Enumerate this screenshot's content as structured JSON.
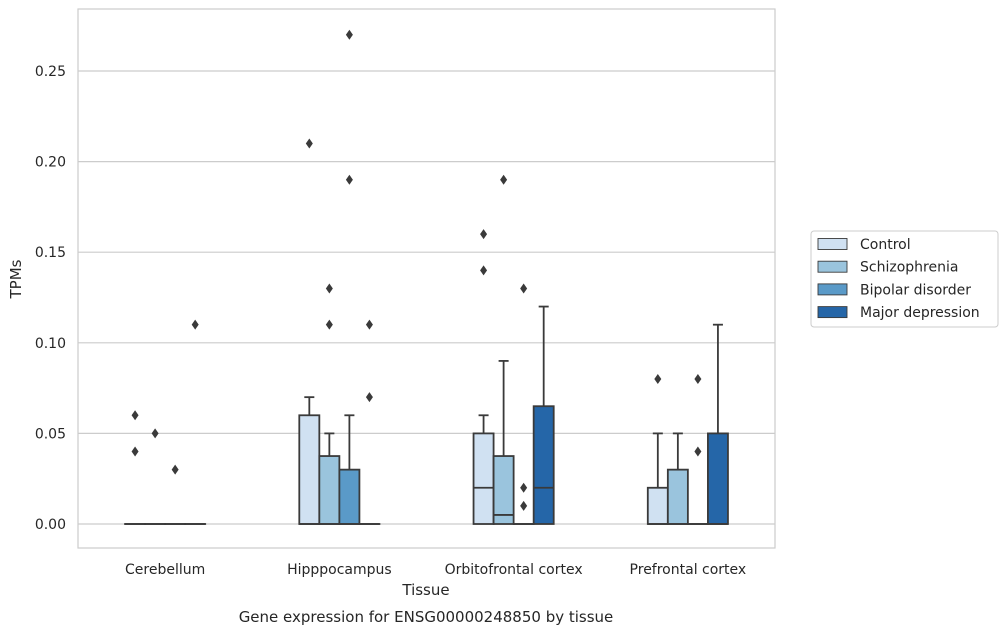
{
  "caption": "Gene expression for ENSG00000248850 by tissue",
  "chart_data": {
    "type": "boxplot",
    "xlabel": "Tissue",
    "ylabel": "TPMs",
    "ylim": [
      -0.013,
      0.284
    ],
    "yticks": [
      0.0,
      0.05,
      0.1,
      0.15,
      0.2,
      0.25
    ],
    "ytick_labels": [
      "0.00",
      "0.05",
      "0.10",
      "0.15",
      "0.20",
      "0.25"
    ],
    "grid": true,
    "legend_placement": "right",
    "categories": [
      "Cerebellum",
      "Hipppocampus",
      "Orbitofrontal cortex",
      "Prefrontal cortex"
    ],
    "series": [
      {
        "name": "Control",
        "color": "#d0e1f2",
        "boxes": [
          {
            "q1": 0.0,
            "median": 0.0,
            "q3": 0.0,
            "whisker_low": 0.0,
            "whisker_high": 0.0,
            "outliers": [
              0.04,
              0.06
            ]
          },
          {
            "q1": 0.0,
            "median": 0.0,
            "q3": 0.06,
            "whisker_low": 0.0,
            "whisker_high": 0.07,
            "outliers": [
              0.21
            ]
          },
          {
            "q1": 0.0,
            "median": 0.02,
            "q3": 0.05,
            "whisker_low": 0.0,
            "whisker_high": 0.06,
            "outliers": [
              0.14,
              0.16
            ]
          },
          {
            "q1": 0.0,
            "median": 0.0,
            "q3": 0.02,
            "whisker_low": 0.0,
            "whisker_high": 0.05,
            "outliers": [
              0.08
            ]
          }
        ]
      },
      {
        "name": "Schizophrenia",
        "color": "#9ac4dd",
        "boxes": [
          {
            "q1": 0.0,
            "median": 0.0,
            "q3": 0.0,
            "whisker_low": 0.0,
            "whisker_high": 0.0,
            "outliers": [
              0.05
            ]
          },
          {
            "q1": 0.0,
            "median": 0.0,
            "q3": 0.0375,
            "whisker_low": 0.0,
            "whisker_high": 0.05,
            "outliers": [
              0.11,
              0.13
            ]
          },
          {
            "q1": 0.0,
            "median": 0.005,
            "q3": 0.0375,
            "whisker_low": 0.0,
            "whisker_high": 0.09,
            "outliers": [
              0.19
            ]
          },
          {
            "q1": 0.0,
            "median": 0.0,
            "q3": 0.03,
            "whisker_low": 0.0,
            "whisker_high": 0.05,
            "outliers": []
          }
        ]
      },
      {
        "name": "Bipolar disorder",
        "color": "#5a9ac8",
        "boxes": [
          {
            "q1": 0.0,
            "median": 0.0,
            "q3": 0.0,
            "whisker_low": 0.0,
            "whisker_high": 0.0,
            "outliers": [
              0.03
            ]
          },
          {
            "q1": 0.0,
            "median": 0.0,
            "q3": 0.03,
            "whisker_low": 0.0,
            "whisker_high": 0.06,
            "outliers": [
              0.19,
              0.27
            ]
          },
          {
            "q1": 0.0,
            "median": 0.0,
            "q3": 0.0,
            "whisker_low": 0.0,
            "whisker_high": 0.0,
            "outliers": [
              0.01,
              0.02,
              0.13
            ]
          },
          {
            "q1": 0.0,
            "median": 0.0,
            "q3": 0.0,
            "whisker_low": 0.0,
            "whisker_high": 0.0,
            "outliers": [
              0.04,
              0.08
            ]
          }
        ]
      },
      {
        "name": "Major depression",
        "color": "#2566a8",
        "boxes": [
          {
            "q1": 0.0,
            "median": 0.0,
            "q3": 0.0,
            "whisker_low": 0.0,
            "whisker_high": 0.0,
            "outliers": [
              0.11
            ]
          },
          {
            "q1": 0.0,
            "median": 0.0,
            "q3": 0.0,
            "whisker_low": 0.0,
            "whisker_high": 0.0,
            "outliers": [
              0.07,
              0.11
            ]
          },
          {
            "q1": 0.0,
            "median": 0.02,
            "q3": 0.065,
            "whisker_low": 0.0,
            "whisker_high": 0.12,
            "outliers": []
          },
          {
            "q1": 0.0,
            "median": 0.0,
            "q3": 0.05,
            "whisker_low": 0.0,
            "whisker_high": 0.11,
            "outliers": []
          }
        ]
      }
    ]
  }
}
